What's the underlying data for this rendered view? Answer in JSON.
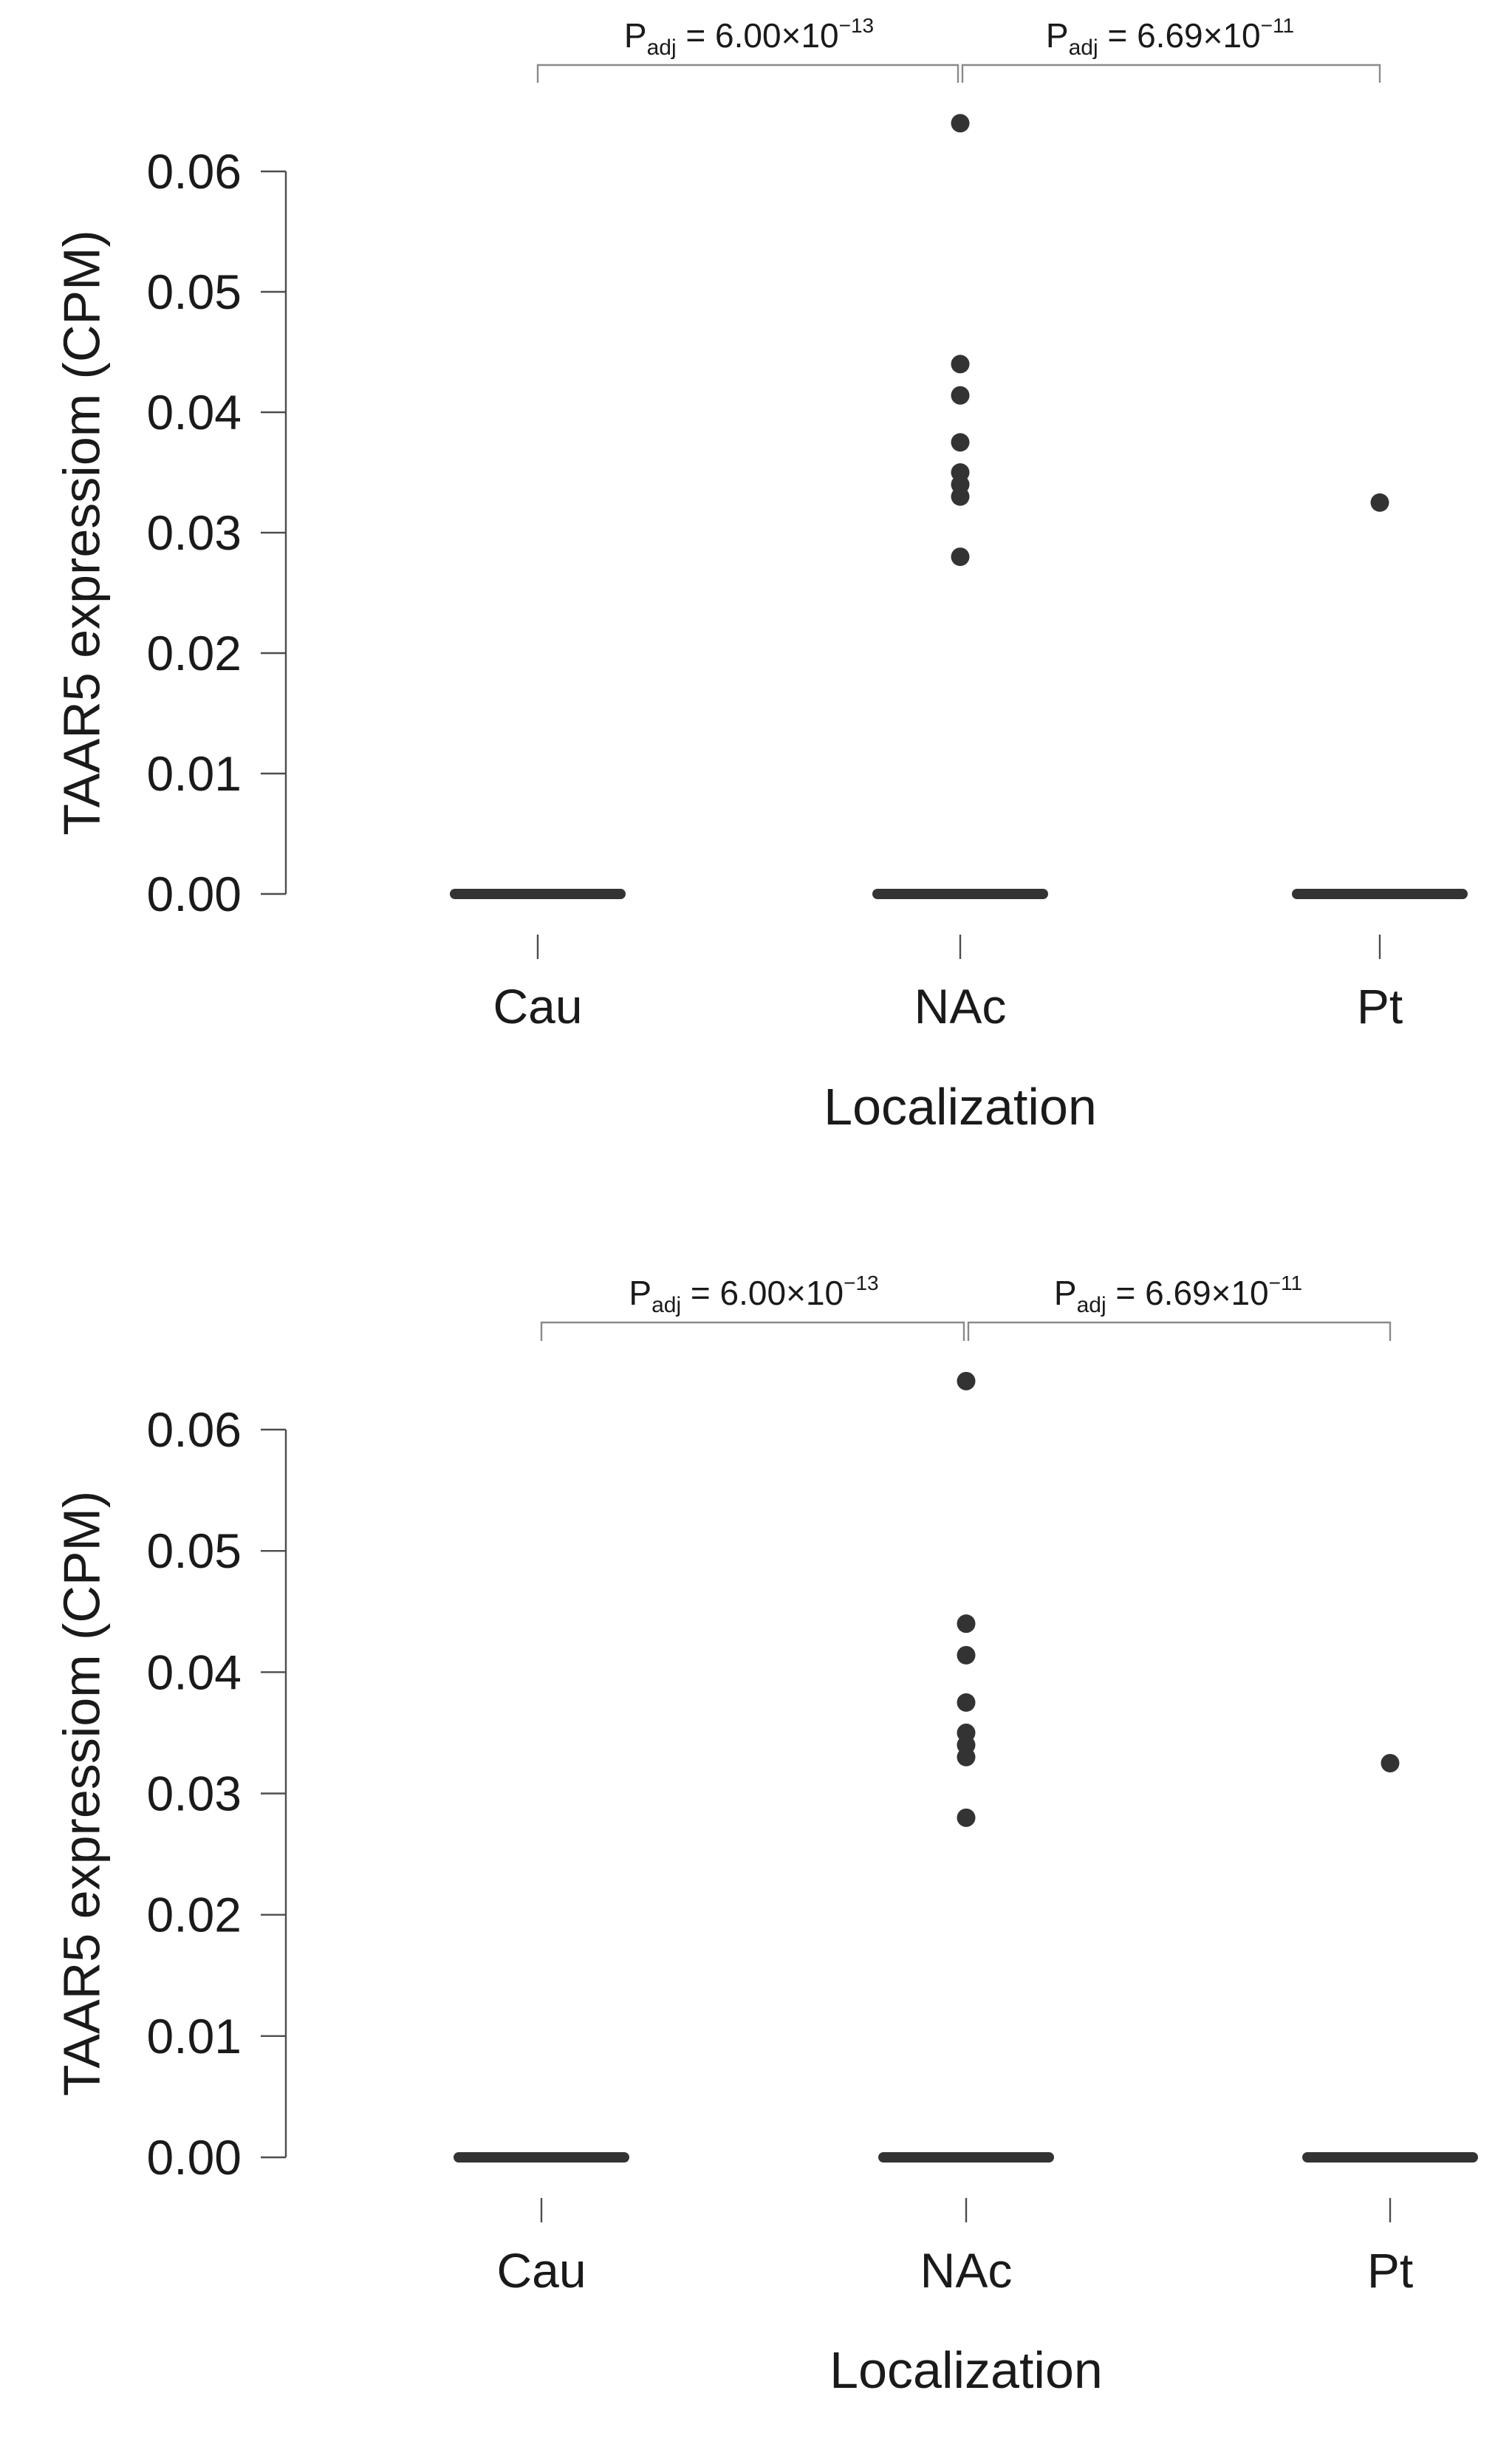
{
  "chart_data": [
    {
      "type": "scatter",
      "title": "",
      "xlabel": "Localization",
      "ylabel": "TAAR5 expressiom (CPM)",
      "ylim": [
        0,
        0.06
      ],
      "yticks": [
        "0.00",
        "0.01",
        "0.02",
        "0.03",
        "0.04",
        "0.05",
        "0.06"
      ],
      "categories": [
        "Cau",
        "NAc",
        "Pt"
      ],
      "zero_median": [
        0,
        0,
        0
      ],
      "points": [
        {
          "category": "NAc",
          "y": 0.064
        },
        {
          "category": "NAc",
          "y": 0.044
        },
        {
          "category": "NAc",
          "y": 0.0414
        },
        {
          "category": "NAc",
          "y": 0.0375
        },
        {
          "category": "NAc",
          "y": 0.035
        },
        {
          "category": "NAc",
          "y": 0.034
        },
        {
          "category": "NAc",
          "y": 0.033
        },
        {
          "category": "NAc",
          "y": 0.028
        },
        {
          "category": "Pt",
          "y": 0.0325
        }
      ],
      "annotations": [
        {
          "from": "Cau",
          "to": "NAc",
          "p_base": "P",
          "p_sub": "adj",
          "p_value": " = 6.00×10",
          "p_exp": "−13"
        },
        {
          "from": "NAc",
          "to": "Pt",
          "p_base": "P",
          "p_sub": "adj",
          "p_value": " = 6.69×10",
          "p_exp": "−11"
        }
      ]
    },
    {
      "type": "scatter",
      "title": "",
      "xlabel": "Localization",
      "ylabel": "TAAR5 expressiom (CPM)",
      "ylim": [
        0,
        0.06
      ],
      "yticks": [
        "0.00",
        "0.01",
        "0.02",
        "0.03",
        "0.04",
        "0.05",
        "0.06"
      ],
      "categories": [
        "Cau",
        "NAc",
        "Pt"
      ],
      "zero_median": [
        0,
        0,
        0
      ],
      "points": [
        {
          "category": "NAc",
          "y": 0.064
        },
        {
          "category": "NAc",
          "y": 0.044
        },
        {
          "category": "NAc",
          "y": 0.0414
        },
        {
          "category": "NAc",
          "y": 0.0375
        },
        {
          "category": "NAc",
          "y": 0.035
        },
        {
          "category": "NAc",
          "y": 0.034
        },
        {
          "category": "NAc",
          "y": 0.033
        },
        {
          "category": "NAc",
          "y": 0.028
        },
        {
          "category": "Pt",
          "y": 0.0325
        }
      ],
      "annotations": [
        {
          "from": "Cau",
          "to": "NAc",
          "p_base": "P",
          "p_sub": "adj",
          "p_value": " = 6.00×10",
          "p_exp": "−13"
        },
        {
          "from": "NAc",
          "to": "Pt",
          "p_base": "P",
          "p_sub": "adj",
          "p_value": " = 6.69×10",
          "p_exp": "−11"
        }
      ]
    }
  ]
}
